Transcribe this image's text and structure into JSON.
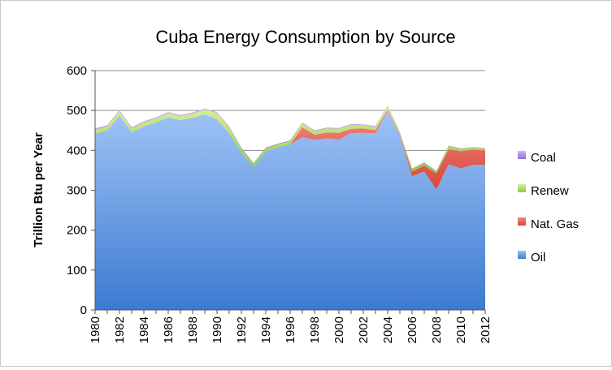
{
  "chart_data": {
    "type": "area",
    "stacked": true,
    "title": "Cuba Energy Consumption by Source",
    "xlabel": "",
    "ylabel": "Trillion Btu per Year",
    "ylim": [
      0,
      600
    ],
    "yticks": [
      "0",
      "100",
      "200",
      "300",
      "400",
      "500",
      "600"
    ],
    "xticks": [
      "1980",
      "1982",
      "1984",
      "1986",
      "1988",
      "1990",
      "1992",
      "1994",
      "1996",
      "1998",
      "2000",
      "2002",
      "2004",
      "2006",
      "2008",
      "2010",
      "2012"
    ],
    "grid": true,
    "legend_position": "right",
    "x": [
      1980,
      1981,
      1982,
      1983,
      1984,
      1985,
      1986,
      1987,
      1988,
      1989,
      1990,
      1991,
      1992,
      1993,
      1994,
      1995,
      1996,
      1997,
      1998,
      1999,
      2000,
      2001,
      2002,
      2003,
      2004,
      2005,
      2006,
      2007,
      2008,
      2009,
      2010,
      2011,
      2012
    ],
    "series": [
      {
        "name": "Oil",
        "color": "#4a86d4",
        "values": [
          442,
          450,
          488,
          445,
          460,
          470,
          483,
          476,
          482,
          490,
          478,
          443,
          395,
          358,
          398,
          408,
          415,
          433,
          426,
          430,
          427,
          443,
          444,
          443,
          498,
          437,
          335,
          347,
          302,
          365,
          355,
          364,
          364
        ]
      },
      {
        "name": "Nat. Gas",
        "color": "#e2574c",
        "values": [
          0,
          0,
          0,
          0,
          0,
          0,
          0,
          0,
          0,
          0,
          0,
          0,
          0,
          0,
          0,
          0,
          0,
          25,
          13,
          15,
          17,
          11,
          11,
          8,
          5,
          3,
          12,
          15,
          40,
          38,
          43,
          38,
          36
        ]
      },
      {
        "name": "Renew",
        "color": "#9bd24a",
        "values": [
          10,
          10,
          10,
          10,
          10,
          10,
          10,
          10,
          10,
          12,
          15,
          15,
          10,
          8,
          7,
          7,
          8,
          10,
          9,
          10,
          10,
          10,
          8,
          8,
          8,
          5,
          6,
          7,
          5,
          8,
          6,
          5,
          5
        ]
      },
      {
        "name": "Coal",
        "color": "#a07bd6",
        "values": [
          3,
          3,
          3,
          3,
          3,
          3,
          3,
          3,
          3,
          3,
          3,
          2,
          2,
          2,
          2,
          2,
          2,
          2,
          2,
          2,
          2,
          2,
          2,
          2,
          2,
          1,
          1,
          1,
          1,
          1,
          1,
          1,
          1
        ]
      }
    ]
  }
}
